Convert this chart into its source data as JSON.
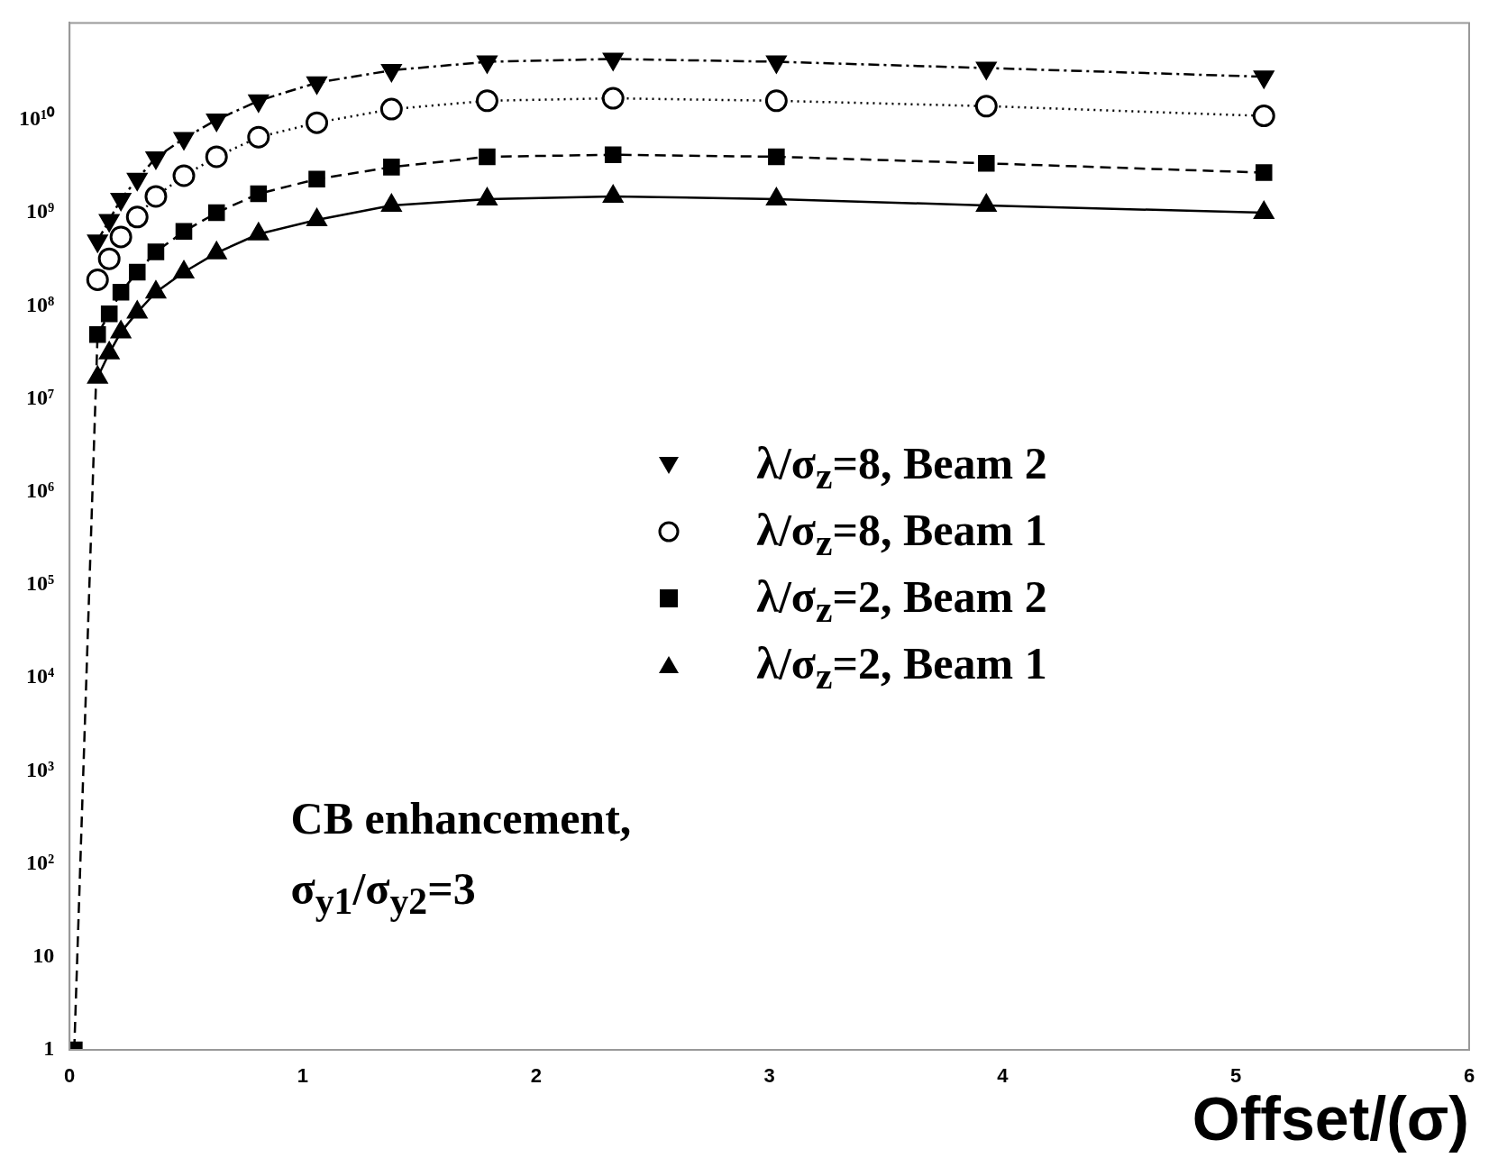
{
  "chart_data": {
    "type": "line",
    "xlabel": "Offset/(σ)",
    "log": "y",
    "legend": "right",
    "grid": false,
    "x": [
      0.02,
      0.12,
      0.17,
      0.22,
      0.29,
      0.37,
      0.49,
      0.63,
      0.81,
      1.06,
      1.38,
      1.79,
      2.33,
      3.03,
      3.93,
      5.12
    ],
    "xlim": [
      0,
      6
    ],
    "xticks": [
      0,
      1,
      2,
      3,
      4,
      5,
      6
    ],
    "ylim": [
      1,
      110000000000
    ],
    "yticks": [
      1,
      10,
      {
        "value": 100,
        "label": "10²"
      },
      {
        "value": 1000,
        "label": "10³"
      },
      {
        "value": 10000,
        "label": "10⁴"
      },
      {
        "value": 100000,
        "label": "10⁵"
      },
      {
        "value": 1000000,
        "label": "10⁶"
      },
      {
        "value": 10000000,
        "label": "10⁷"
      },
      {
        "value": 100000000,
        "label": "10⁸"
      },
      {
        "value": 1000000000,
        "label": "10⁹"
      },
      {
        "value": 10000000000,
        "label": "10¹⁰"
      }
    ],
    "series": [
      {
        "name": "λ/σ$_{z}$=8, Beam 2",
        "color": "#000000",
        "marker": "triangle",
        "line_style": "dashdot",
        "values": [
          null,
          500000000,
          830000000,
          1400000000,
          2300000000,
          3900000000,
          6300000000,
          10000000000,
          16000000000,
          25000000000,
          34000000000,
          42000000000,
          45000000000,
          42000000000,
          36000000000,
          29000000000
        ]
      },
      {
        "name": "λ/σ$_{z}$=8, Beam 1",
        "color": "#000000",
        "marker": "circle",
        "line_style": "dotted",
        "values": [
          null,
          190000000,
          320000000,
          550000000,
          900000000,
          1500000000,
          2500000000,
          4000000000,
          6500000000,
          9300000000,
          13000000000,
          16000000000,
          17000000000,
          16000000000,
          14000000000,
          11000000000
        ]
      },
      {
        "name": "λ/σ$_{z}$=2, Beam 2",
        "color": "#000000",
        "marker": "square",
        "line_style": "dashed",
        "values": [
          1,
          49000000,
          82000000,
          140000000,
          230000000,
          380000000,
          630000000,
          1000000000,
          1600000000,
          2300000000,
          3100000000,
          4000000000,
          4200000000,
          4000000000,
          3400000000,
          2700000000
        ]
      },
      {
        "name": "λ/σ$_{z}$=2, Beam 1",
        "color": "#000000",
        "marker": "triangle",
        "line_style": "solid",
        "values": [
          null,
          17000000,
          31000000,
          52000000,
          85000000,
          140000000,
          230000000,
          370000000,
          590000000,
          840000000,
          1200000000,
          1400000000,
          1500000000,
          1400000000,
          1200000000,
          1000000000
        ]
      }
    ],
    "annotations": [
      "CB enhancement,",
      "σ$_{y1}$/σ$_{y2}$=3"
    ]
  }
}
